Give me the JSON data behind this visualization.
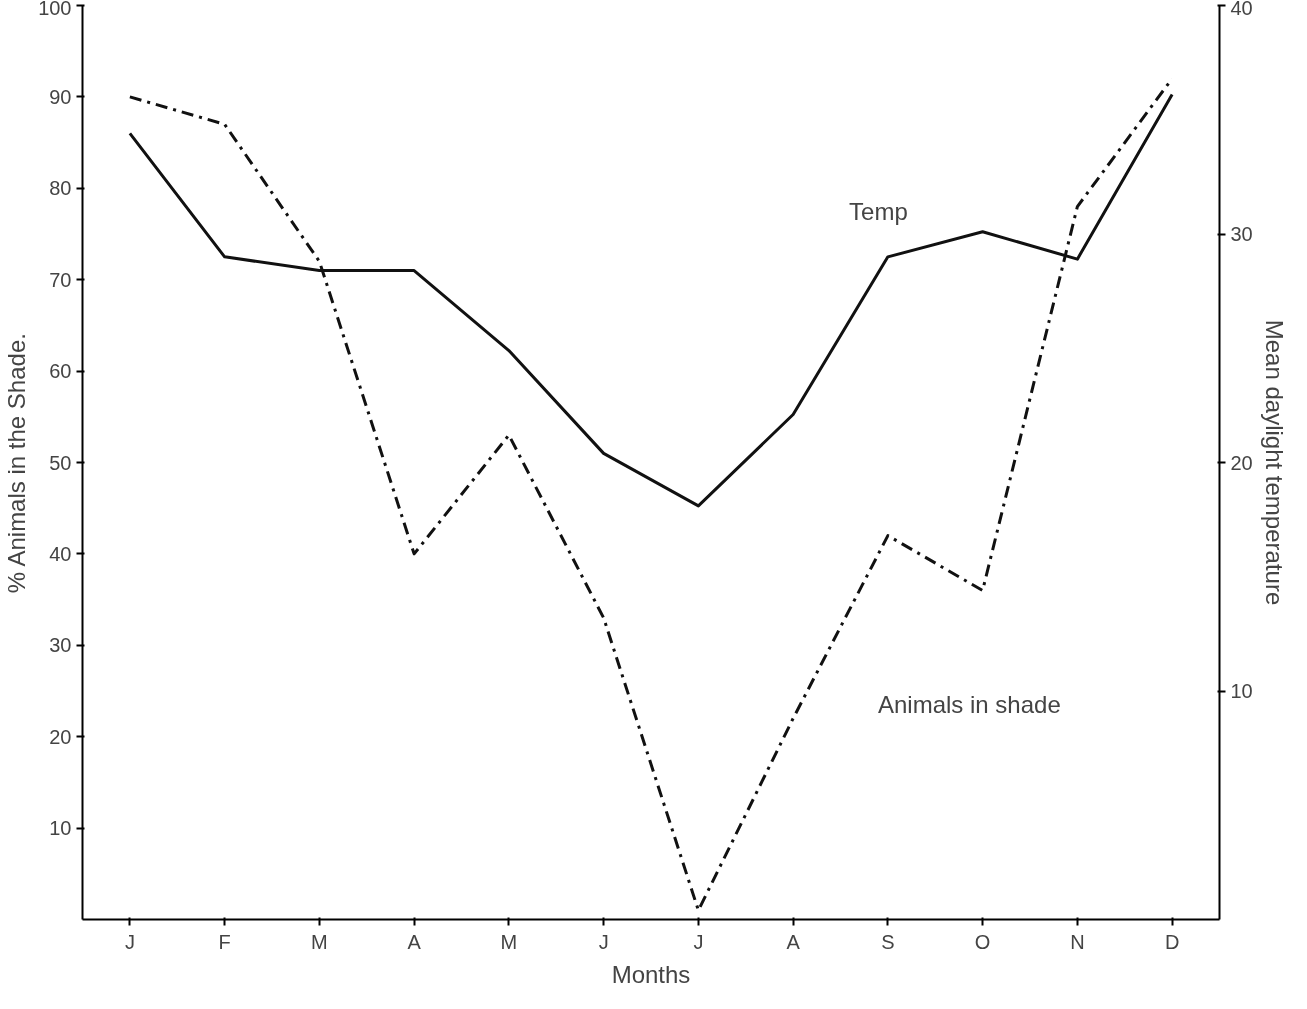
{
  "chart_data": {
    "type": "line",
    "xlabel": "Months",
    "ylabel": "% Animals in the Shade.",
    "y2label": "Mean daylight temperature",
    "categories": [
      "J",
      "F",
      "M",
      "A",
      "M",
      "J",
      "J",
      "A",
      "S",
      "O",
      "N",
      "D"
    ],
    "series": [
      {
        "color": "#111111",
        "line_style": "dashed",
        "values": [
          90,
          87,
          72,
          40,
          53,
          33,
          1,
          22,
          42,
          36,
          78,
          92
        ]
      },
      {
        "color": "#111111",
        "line_style": "solid",
        "axis": "y2",
        "values": [
          34.4,
          29,
          28.4,
          28.4,
          24.9,
          20.4,
          18.1,
          22.1,
          29,
          30.1,
          28.9,
          36.1
        ]
      }
    ],
    "ylim": [
      0,
      100
    ],
    "yticks": [
      10,
      20,
      30,
      40,
      50,
      60,
      70,
      80,
      90,
      100
    ],
    "y2lim": [
      0,
      40
    ],
    "y2ticks": [
      10,
      20,
      30,
      40
    ],
    "annotations": [
      "Temp",
      "Animals in shade"
    ],
    "grid": false,
    "marker": "none"
  }
}
